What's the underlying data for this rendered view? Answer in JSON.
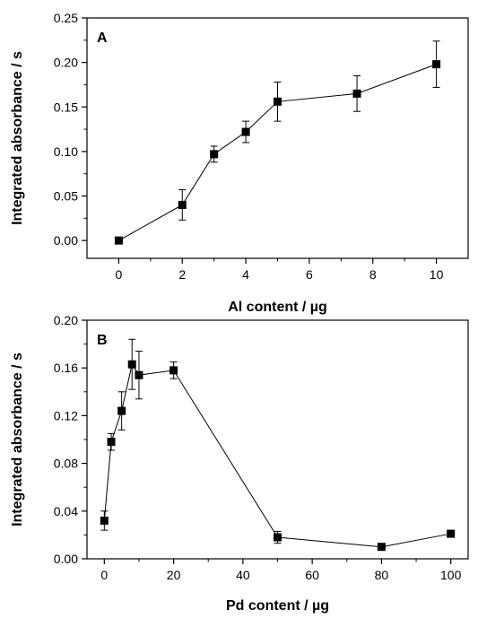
{
  "chart_data": [
    {
      "type": "line",
      "panel_label": "A",
      "xlabel": "Al content / µg",
      "ylabel": "Integrated absorbance / s",
      "xlim": [
        -1,
        11
      ],
      "ylim": [
        -0.02,
        0.25
      ],
      "xticks": [
        0,
        2,
        4,
        6,
        8,
        10
      ],
      "yticks": [
        0.0,
        0.05,
        0.1,
        0.15,
        0.2,
        0.25
      ],
      "xtick_labels": [
        "0",
        "2",
        "4",
        "6",
        "8",
        "10"
      ],
      "ytick_labels": [
        "0.00",
        "0.05",
        "0.10",
        "0.15",
        "0.20",
        "0.25"
      ],
      "series": [
        {
          "x": [
            0,
            2,
            3,
            4,
            5,
            7.5,
            10
          ],
          "y": [
            0.0,
            0.04,
            0.097,
            0.122,
            0.156,
            0.165,
            0.198
          ],
          "error": [
            0,
            0.017,
            0.009,
            0.012,
            0.022,
            0.02,
            0.026
          ]
        }
      ]
    },
    {
      "type": "line",
      "panel_label": "B",
      "xlabel": "Pd content / µg",
      "ylabel": "Integrated absorbance / s",
      "xlim": [
        -5,
        105
      ],
      "ylim": [
        0,
        0.2
      ],
      "xticks": [
        0,
        20,
        40,
        60,
        80,
        100
      ],
      "yticks": [
        0.0,
        0.04,
        0.08,
        0.12,
        0.16,
        0.2
      ],
      "xtick_labels": [
        "0",
        "20",
        "40",
        "60",
        "80",
        "100"
      ],
      "ytick_labels": [
        "0.00",
        "0.04",
        "0.08",
        "0.12",
        "0.16",
        "0.20"
      ],
      "series": [
        {
          "x": [
            0,
            2,
            5,
            8,
            10,
            20,
            50,
            80,
            100
          ],
          "y": [
            0.032,
            0.098,
            0.124,
            0.163,
            0.154,
            0.158,
            0.018,
            0.01,
            0.021
          ],
          "error": [
            0.008,
            0.007,
            0.016,
            0.021,
            0.02,
            0.007,
            0.005,
            0,
            0
          ]
        }
      ]
    }
  ]
}
